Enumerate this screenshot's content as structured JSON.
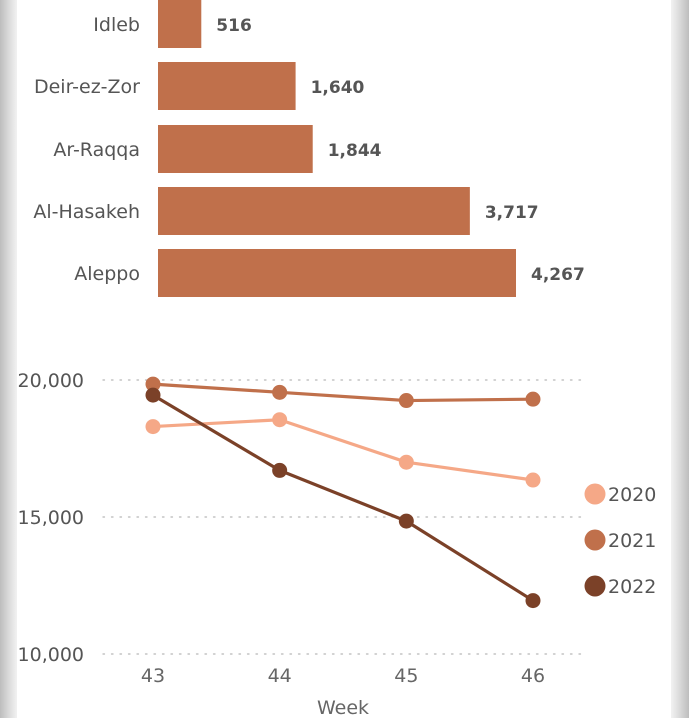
{
  "chart_data": [
    {
      "type": "bar",
      "orientation": "horizontal",
      "categories": [
        "Idleb",
        "Deir-ez-Zor",
        "Ar-Raqqa",
        "Al-Hasakeh",
        "Aleppo"
      ],
      "values": [
        516,
        1640,
        1844,
        3717,
        4267
      ],
      "value_labels": [
        "516",
        "1,640",
        "1,844",
        "3,717",
        "4,267"
      ],
      "xlim": [
        0,
        5200
      ],
      "color": "#c0704b"
    },
    {
      "type": "line",
      "x": [
        43,
        44,
        45,
        46
      ],
      "x_tick_labels": [
        "43",
        "44",
        "45",
        "46"
      ],
      "xlabel": "Week",
      "ylim": [
        10000,
        20000
      ],
      "y_ticks": [
        10000,
        15000,
        20000
      ],
      "y_tick_labels": [
        "10,000",
        "15,000",
        "20,000"
      ],
      "grid": true,
      "legend": "right",
      "series": [
        {
          "name": "2020",
          "color": "#f5a887",
          "values": [
            18300,
            18550,
            17000,
            16350
          ]
        },
        {
          "name": "2021",
          "color": "#c0704b",
          "values": [
            19850,
            19550,
            19250,
            19300
          ]
        },
        {
          "name": "2022",
          "color": "#7b4128",
          "values": [
            19450,
            16700,
            14850,
            11950
          ]
        }
      ]
    }
  ]
}
